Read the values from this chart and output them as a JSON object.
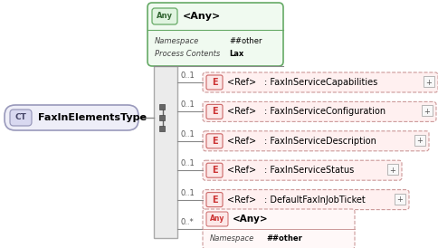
{
  "bg_color": "#ffffff",
  "ct_label": "FaxInElementsType",
  "ct_badge": "CT",
  "any_top_title": "<Any>",
  "any_top_badge": "Any",
  "any_top_rows": [
    [
      "Namespace",
      "##other"
    ],
    [
      "Process Contents",
      "Lax"
    ]
  ],
  "elements": [
    ": FaxInServiceCapabilities",
    ": FaxInServiceConfiguration",
    ": FaxInServiceDescription",
    ": FaxInServiceStatus",
    ": DefaultFaxInJobTicket"
  ],
  "elem_occ": "0..1",
  "any_bot_badge": "Any",
  "any_bot_title": "<Any>",
  "any_bot_ns": "##other",
  "any_bot_occ": "0..*"
}
